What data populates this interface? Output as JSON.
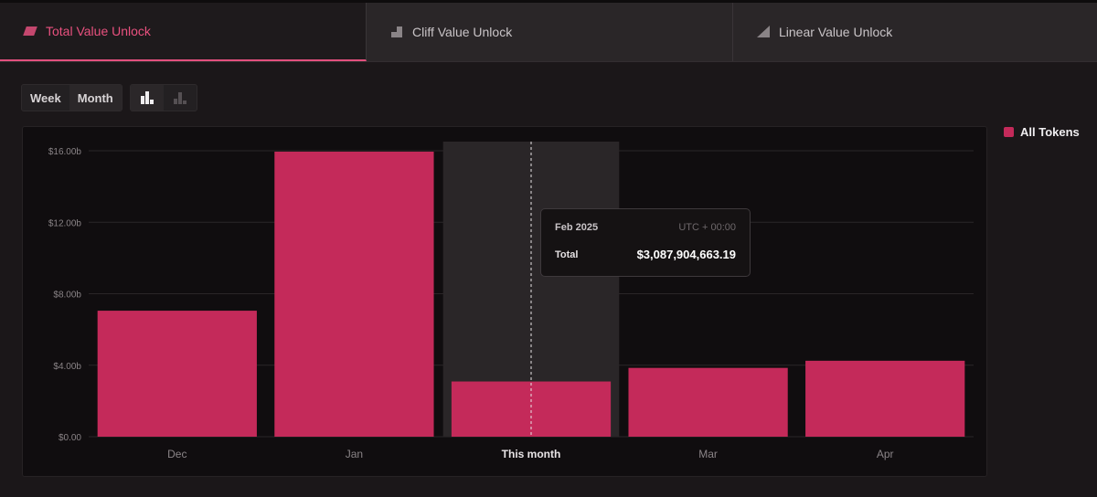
{
  "tabs": [
    {
      "label": "Total Value Unlock",
      "icon": "total-unlock-icon",
      "active": true
    },
    {
      "label": "Cliff Value Unlock",
      "icon": "cliff-unlock-icon",
      "active": false
    },
    {
      "label": "Linear Value Unlock",
      "icon": "linear-unlock-icon",
      "active": false
    }
  ],
  "controls": {
    "week_label": "Week",
    "month_label": "Month",
    "bar_view_icon": "bar-chart-icon",
    "stacked_view_icon": "stacked-chart-icon"
  },
  "legend": {
    "label": "All Tokens",
    "color": "#c42a5a"
  },
  "tooltip": {
    "date": "Feb 2025",
    "timezone": "UTC + 00:00",
    "total_label": "Total",
    "total_value": "$3,087,904,663.19"
  },
  "colors": {
    "accent": "#e2507d",
    "bar": "#c42a5a",
    "highlight_bg": "#2a2628"
  },
  "chart_data": {
    "type": "bar",
    "categories": [
      "Dec",
      "Jan",
      "This month",
      "Mar",
      "Apr"
    ],
    "series": [
      {
        "name": "All Tokens",
        "values": [
          7.05,
          15.95,
          3.09,
          3.85,
          4.25
        ]
      }
    ],
    "y_ticks": [
      "$0.00",
      "$4.00b",
      "$8.00b",
      "$12.00b",
      "$16.00b"
    ],
    "y_tick_values": [
      0,
      4,
      8,
      12,
      16
    ],
    "ylim": [
      0,
      16
    ],
    "highlighted_category": "This month",
    "grid": true
  }
}
